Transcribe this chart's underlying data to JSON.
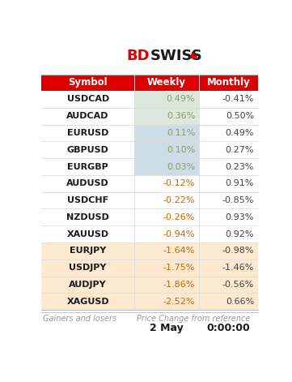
{
  "symbols": [
    "USDCAD",
    "AUDCAD",
    "EURUSD",
    "GBPUSD",
    "EURGBP",
    "AUDUSD",
    "USDCHF",
    "NZDUSD",
    "XAUUSD",
    "EURJPY",
    "USDJPY",
    "AUDJPY",
    "XAGUSD"
  ],
  "weekly": [
    "0.49%",
    "0.36%",
    "0.11%",
    "0.10%",
    "0.03%",
    "-0.12%",
    "-0.22%",
    "-0.26%",
    "-0.94%",
    "-1.64%",
    "-1.75%",
    "-1.86%",
    "-2.52%"
  ],
  "monthly": [
    "-0.41%",
    "0.50%",
    "0.49%",
    "0.27%",
    "0.23%",
    "0.91%",
    "-0.85%",
    "0.93%",
    "0.92%",
    "-0.98%",
    "-1.46%",
    "-0.56%",
    "0.66%"
  ],
  "weekly_bg": [
    "#dde8dc",
    "#dde8dc",
    "#ccdde8",
    "#ccdde8",
    "#ccdde8",
    null,
    null,
    null,
    null,
    "#fde8d0",
    "#fde8d0",
    "#fde8d0",
    "#fde8d0"
  ],
  "row_full_bg": [
    null,
    null,
    null,
    null,
    null,
    null,
    null,
    null,
    null,
    "#fde8d0",
    "#fde8d0",
    "#fde8d0",
    "#fde8d0"
  ],
  "header_bg": "#dd0000",
  "header_text": "#ffffff",
  "symbol_color": "#1a1a1a",
  "weekly_pos_color": "#8a9a6a",
  "weekly_neg_color": "#cc6600",
  "monthly_color": "#444444",
  "footer_text_color": "#999999",
  "date_text": "2 May",
  "time_text": "0:00:00",
  "footer_left": "Gainers and losers",
  "footer_right": "Price Change from reference",
  "title_bd": "BD",
  "title_swiss": "SWISS",
  "bg_color": "#ffffff",
  "border_color": "#bbbbbb",
  "divider_color": "#dddddd"
}
